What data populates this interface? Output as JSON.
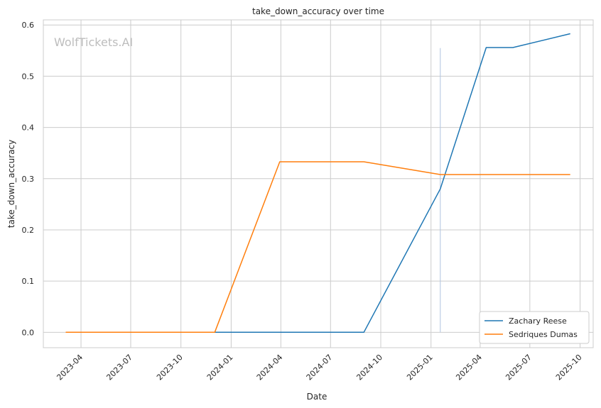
{
  "chart_data": {
    "type": "line",
    "title": "take_down_accuracy over time",
    "xlabel": "Date",
    "ylabel": "take_down_accuracy",
    "watermark": "WolfTickets.AI",
    "x_ticks": [
      "2023-04",
      "2023-07",
      "2023-10",
      "2024-01",
      "2024-04",
      "2024-07",
      "2024-10",
      "2025-01",
      "2025-04",
      "2025-07",
      "2025-10"
    ],
    "y_ticks": [
      "0.0",
      "0.1",
      "0.2",
      "0.3",
      "0.4",
      "0.5",
      "0.6"
    ],
    "xlim": [
      "2023-01-22",
      "2025-10-25"
    ],
    "ylim": [
      -0.03,
      0.61
    ],
    "grid": true,
    "legend_position": "lower right",
    "series": [
      {
        "name": "Zachary Reese",
        "color": "#1f77b4",
        "points": [
          {
            "x": "2023-12-02",
            "y": 0.0
          },
          {
            "x": "2024-08-31",
            "y": 0.0
          },
          {
            "x": "2025-01-18",
            "y": 0.28
          },
          {
            "x": "2025-04-12",
            "y": 0.556
          },
          {
            "x": "2025-05-31",
            "y": 0.556
          },
          {
            "x": "2025-09-13",
            "y": 0.583
          }
        ]
      },
      {
        "name": "Sedriques Dumas",
        "color": "#ff7f0e",
        "points": [
          {
            "x": "2023-03-04",
            "y": 0.0
          },
          {
            "x": "2023-12-02",
            "y": 0.0
          },
          {
            "x": "2024-03-30",
            "y": 0.333
          },
          {
            "x": "2024-08-31",
            "y": 0.333
          },
          {
            "x": "2025-01-18",
            "y": 0.308
          },
          {
            "x": "2025-09-13",
            "y": 0.308
          }
        ]
      }
    ],
    "vertical_marker": {
      "x": "2025-01-18",
      "y_range": [
        0.0,
        0.555
      ],
      "color": "#b0c4de"
    }
  }
}
